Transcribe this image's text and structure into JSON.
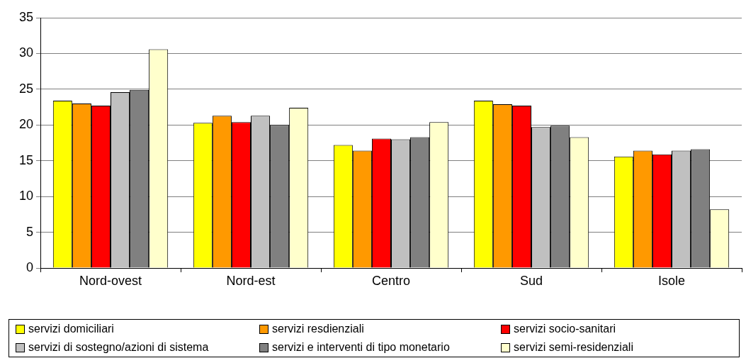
{
  "chart_data": {
    "type": "bar",
    "categories": [
      "Nord-ovest",
      "Nord-est",
      "Centro",
      "Sud",
      "Isole"
    ],
    "series": [
      {
        "name": "servizi domiciliari",
        "color": "#ffff00",
        "values": [
          23.4,
          20.3,
          17.2,
          23.4,
          15.6
        ]
      },
      {
        "name": "servizi resdienziali",
        "color": "#ff9900",
        "values": [
          23.0,
          21.3,
          16.4,
          22.9,
          16.4
        ]
      },
      {
        "name": "servizi socio-sanitari",
        "color": "#ff0000",
        "values": [
          22.7,
          20.4,
          18.1,
          22.7,
          15.9
        ]
      },
      {
        "name": "servizi di sostegno/azioni di sistema",
        "color": "#c0c0c0",
        "values": [
          24.6,
          21.3,
          18.0,
          19.7,
          16.4
        ]
      },
      {
        "name": "servizi e interventi di tipo monetario",
        "color": "#808080",
        "values": [
          24.9,
          20.0,
          18.3,
          19.9,
          16.6
        ]
      },
      {
        "name": "servizi semi-residenziali",
        "color": "#ffffcc",
        "values": [
          30.6,
          22.4,
          20.4,
          18.3,
          8.2
        ]
      }
    ],
    "ylim": [
      0,
      35
    ],
    "yticks": [
      0,
      5,
      10,
      15,
      20,
      25,
      30,
      35
    ],
    "grid": "y",
    "legend": "bottom"
  }
}
